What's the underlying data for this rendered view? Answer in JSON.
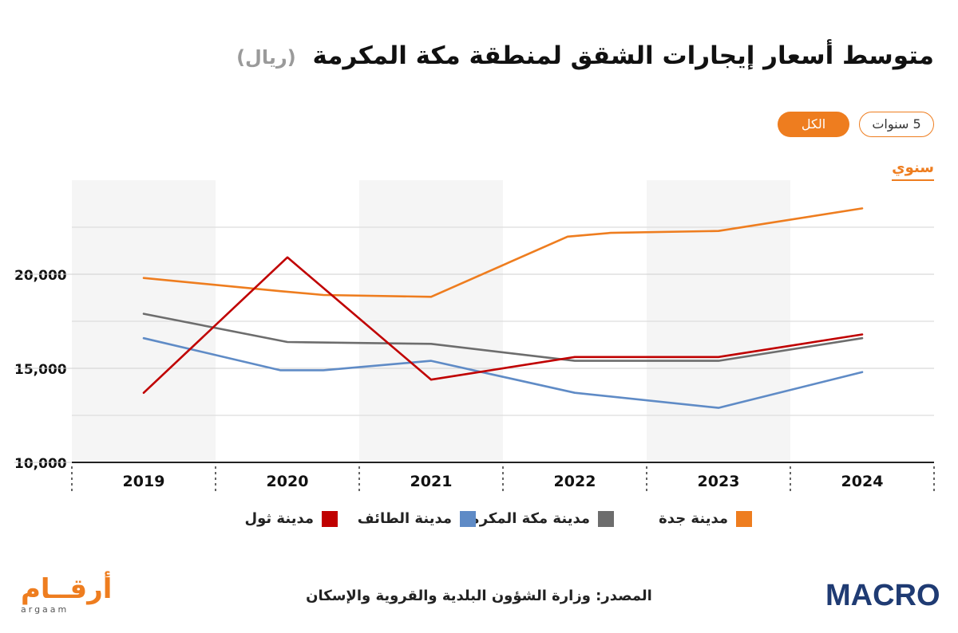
{
  "header": {
    "title": "متوسط أسعار إيجارات الشقق لمنطقة مكة المكرمة",
    "unit": "(ريال)"
  },
  "filters": {
    "five_years": "5 سنوات",
    "all": "الكل",
    "period": "سنوي"
  },
  "chart_data": {
    "type": "line",
    "x": [
      "2019",
      "2020",
      "2021",
      "2022",
      "2023",
      "2024"
    ],
    "y_ticks": [
      "10,000",
      "15,000",
      "20,000"
    ],
    "ylim": [
      10000,
      25000
    ],
    "grid": true,
    "legend_position": "bottom",
    "series": [
      {
        "name": "مدينة جدة",
        "color": "#ee7d1f",
        "values": [
          19800,
          [
            19100,
            18900
          ],
          18800,
          [
            22000,
            22200
          ],
          22300,
          23500
        ]
      },
      {
        "name": "مدينة مكة المكرمة",
        "color": "#6d6d6d",
        "values": [
          17900,
          16400,
          16300,
          15400,
          15400,
          16600
        ]
      },
      {
        "name": "مدينة الطائف",
        "color": "#5f8bc6",
        "values": [
          16600,
          [
            14900,
            14900
          ],
          15400,
          13700,
          12900,
          14800
        ]
      },
      {
        "name": "مدينة ثول",
        "color": "#c00000",
        "values": [
          13700,
          20900,
          14400,
          15600,
          15600,
          16800
        ]
      }
    ]
  },
  "footer": {
    "source": "المصدر: وزارة الشؤون البلدية والقروية والإسكان",
    "logo_left_ar": "أرقــام",
    "logo_left_lat": "argaam",
    "logo_right": "MACRO"
  }
}
